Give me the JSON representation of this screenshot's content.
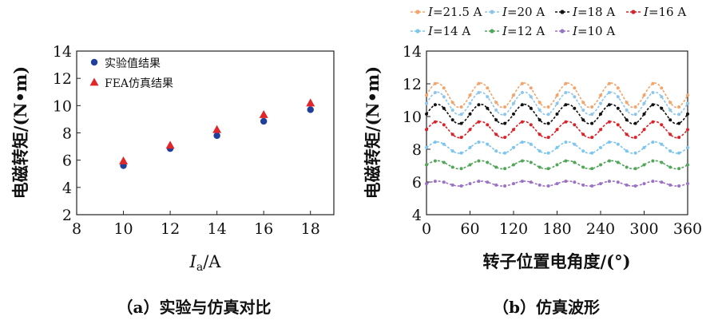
{
  "chart_data": [
    {
      "type": "scatter",
      "title": "",
      "xlabel": "I",
      "xlabel_sub": "a",
      "xlabel_unit": "/A",
      "ylabel": "电磁转矩/(N•m)",
      "xlim": [
        8,
        19
      ],
      "ylim": [
        2,
        14
      ],
      "xticks": [
        8,
        10,
        12,
        14,
        16,
        18
      ],
      "yticks": [
        2,
        4,
        6,
        8,
        10,
        12,
        14
      ],
      "grid": false,
      "legend_position": "top-left",
      "caption": "（a）实验与仿真对比",
      "series": [
        {
          "name": "实验值结果",
          "marker": "circle",
          "color": "#1f3f9a",
          "x": [
            10,
            12,
            14,
            16,
            18
          ],
          "y": [
            5.6,
            6.85,
            7.8,
            8.85,
            9.7
          ]
        },
        {
          "name": "FEA仿真结果",
          "marker": "triangle",
          "color": "#e0262b",
          "x": [
            10,
            12,
            14,
            16,
            18
          ],
          "y": [
            5.95,
            7.1,
            8.25,
            9.35,
            10.2
          ]
        }
      ]
    },
    {
      "type": "line",
      "title": "",
      "xlabel": "转子位置电角度/(°)",
      "ylabel": "电磁转矩/(N•m)",
      "xlim": [
        0,
        360
      ],
      "ylim": [
        4,
        14
      ],
      "xticks": [
        0,
        60,
        120,
        180,
        240,
        300,
        360
      ],
      "yticks": [
        4,
        6,
        8,
        10,
        12,
        14
      ],
      "grid": false,
      "legend_position": "top",
      "caption": "（b）仿真波形",
      "ripple_period_deg": 60,
      "series": [
        {
          "name_prefix": "I",
          "name_suffix": "=21.5 A",
          "color": "#f2a46a",
          "mean": 11.3,
          "amplitude": 0.75
        },
        {
          "name_prefix": "I",
          "name_suffix": "=20 A",
          "color": "#8ec6ea",
          "mean": 10.8,
          "amplitude": 0.7
        },
        {
          "name_prefix": "I",
          "name_suffix": "=18 A",
          "color": "#111111",
          "mean": 10.15,
          "amplitude": 0.6
        },
        {
          "name_prefix": "I",
          "name_suffix": "=16 A",
          "color": "#d9232a",
          "mean": 9.2,
          "amplitude": 0.5
        },
        {
          "name_prefix": "I",
          "name_suffix": "=14 A",
          "color": "#7cc5ee",
          "mean": 8.1,
          "amplitude": 0.35
        },
        {
          "name_prefix": "I",
          "name_suffix": "=12 A",
          "color": "#52a65a",
          "mean": 7.05,
          "amplitude": 0.25
        },
        {
          "name_prefix": "I",
          "name_suffix": "=10 A",
          "color": "#9a72c4",
          "mean": 5.9,
          "amplitude": 0.15
        }
      ]
    }
  ]
}
